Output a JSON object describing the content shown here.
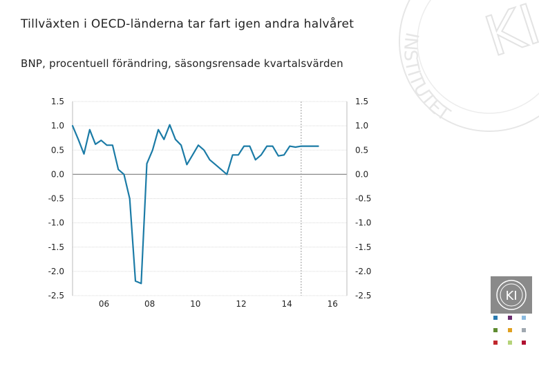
{
  "chart_data": {
    "type": "line",
    "title": "Tillväxten i OECD-länderna tar fart igen andra halvåret",
    "subtitle": "BNP, procentuell förändring, säsongsrensade kvartalsvärden",
    "xlabel": "",
    "ylabel": "",
    "ylim": [
      -2.5,
      1.5
    ],
    "yticks": [
      "1.5",
      "1.0",
      "0.5",
      "0.0",
      "-0.5",
      "-1.0",
      "-1.5",
      "-2.0",
      "-2.5"
    ],
    "ytick_values": [
      1.5,
      1.0,
      0.5,
      0.0,
      -0.5,
      -1.0,
      -1.5,
      -2.0,
      -2.5
    ],
    "xticks": [
      "06",
      "08",
      "10",
      "12",
      "14",
      "16"
    ],
    "xtick_years": [
      2006,
      2008,
      2010,
      2012,
      2014,
      2016
    ],
    "x_quarters": [
      "2005Q1",
      "2005Q2",
      "2005Q3",
      "2005Q4",
      "2006Q1",
      "2006Q2",
      "2006Q3",
      "2006Q4",
      "2007Q1",
      "2007Q2",
      "2007Q3",
      "2007Q4",
      "2008Q1",
      "2008Q2",
      "2008Q3",
      "2008Q4",
      "2009Q1",
      "2009Q2",
      "2009Q3",
      "2009Q4",
      "2010Q1",
      "2010Q2",
      "2010Q3",
      "2010Q4",
      "2011Q1",
      "2011Q2",
      "2011Q3",
      "2011Q4",
      "2012Q1",
      "2012Q2",
      "2012Q3",
      "2012Q4",
      "2013Q1",
      "2013Q2",
      "2013Q3",
      "2013Q4",
      "2014Q1",
      "2014Q2",
      "2014Q3",
      "2014Q4",
      "2015Q1",
      "2015Q2",
      "2015Q3",
      "2015Q4",
      "2016Q1",
      "2016Q2",
      "2016Q3",
      "2016Q4",
      "2017Q1"
    ],
    "series": [
      {
        "values": [
          1.0,
          0.72,
          0.42,
          0.92,
          0.62,
          0.7,
          0.6,
          0.6,
          0.1,
          0.0,
          -0.5,
          -2.2,
          -2.25,
          0.22,
          0.5,
          0.92,
          0.72,
          1.02,
          0.72,
          0.6,
          0.2,
          0.4,
          0.6,
          0.5,
          0.3,
          0.2,
          0.1,
          0.0,
          0.4,
          0.4,
          0.58,
          0.58,
          0.3,
          0.4,
          0.58,
          0.58,
          0.38,
          0.4,
          0.58,
          0.56,
          0.58,
          0.58,
          0.58,
          0.58
        ]
      }
    ],
    "forecast_start": "2015Q1",
    "grid": true,
    "legend": "none",
    "colors": {
      "line": "#1b7ba6",
      "grid": "#d9d9d9",
      "zero": "#888888",
      "forecast": "#999999",
      "text": "#222222"
    }
  },
  "seal": {
    "ring_text": "INSTITUTET",
    "monogram": "KI"
  },
  "logo": {
    "monogram": "KI"
  },
  "swatch_colors": [
    "#2a7ab0",
    "#6b2d6e",
    "#8bbbe0",
    "#5e8c31",
    "#e0a020",
    "#a0a8b0",
    "#c0282d",
    "#b5d37a",
    "#b01030"
  ]
}
